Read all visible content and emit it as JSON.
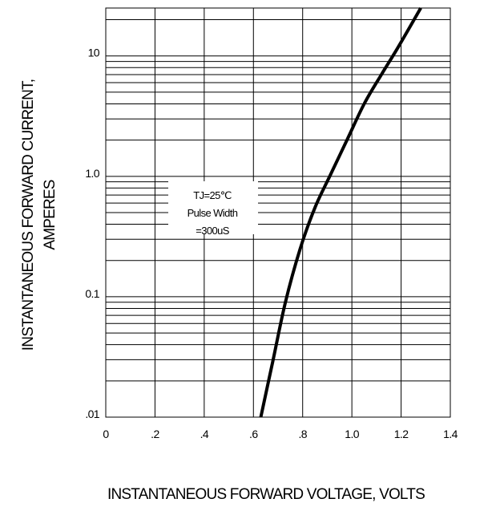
{
  "chart_data": {
    "type": "line",
    "xlabel": "INSTANTANEOUS FORWARD VOLTAGE,  VOLTS",
    "ylabel_lines": [
      "INSTANTANEOUS FORWARD CURRENT,",
      "AMPERES"
    ],
    "x_ticks": [
      {
        "value": 0,
        "label": "0"
      },
      {
        "value": 0.2,
        "label": ".2"
      },
      {
        "value": 0.4,
        "label": ".4"
      },
      {
        "value": 0.6,
        "label": ".6"
      },
      {
        "value": 0.8,
        "label": ".8"
      },
      {
        "value": 1.0,
        "label": "1.0"
      },
      {
        "value": 1.2,
        "label": "1.2"
      },
      {
        "value": 1.4,
        "label": "1.4"
      }
    ],
    "y_ticks": [
      {
        "value": 0.01,
        "label": ".01"
      },
      {
        "value": 0.1,
        "label": "0.1"
      },
      {
        "value": 1.0,
        "label": "1.0"
      },
      {
        "value": 10,
        "label": "10"
      }
    ],
    "xlim": [
      0,
      1.4
    ],
    "ylim": [
      0.01,
      25
    ],
    "y_scale": "log",
    "grid": true,
    "annotation": [
      "TJ=25℃",
      "Pulse Width",
      "=300uS"
    ],
    "series": [
      {
        "color": "#000000",
        "x": [
          0.63,
          0.68,
          0.73,
          0.79,
          0.85,
          0.91,
          0.98,
          1.05,
          1.12,
          1.19,
          1.28
        ],
        "y": [
          0.01,
          0.03,
          0.09,
          0.25,
          0.55,
          1.0,
          2.0,
          4.0,
          7.0,
          12.0,
          25.0
        ]
      }
    ]
  }
}
